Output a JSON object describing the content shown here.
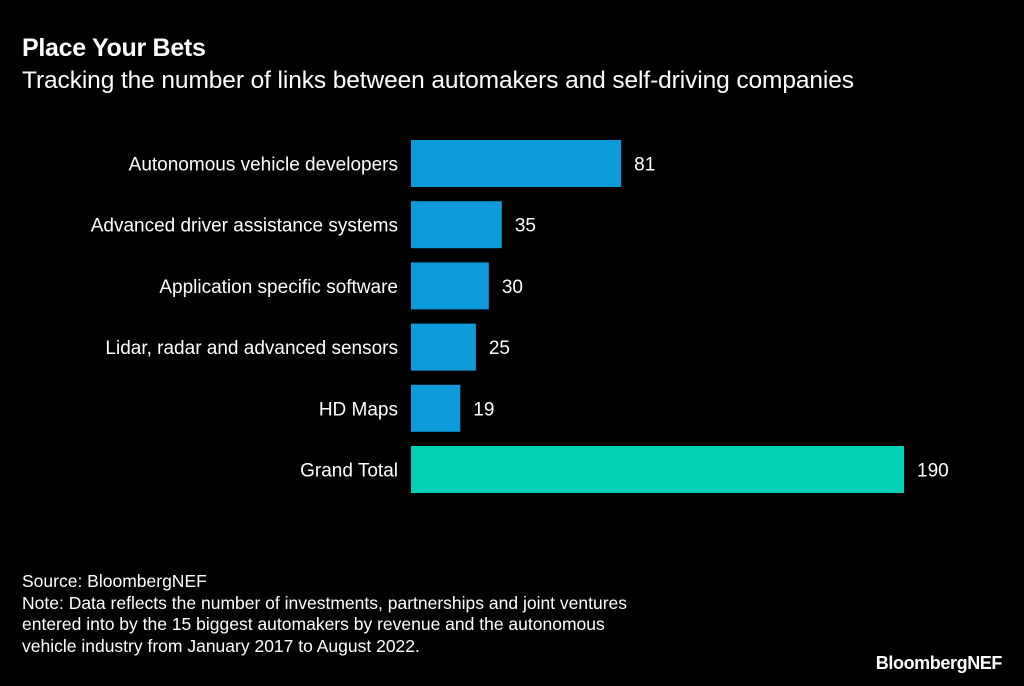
{
  "header": {
    "title": "Place Your Bets",
    "subtitle": "Tracking the number of links between automakers and self-driving companies"
  },
  "chart_data": {
    "type": "bar",
    "orientation": "horizontal",
    "title": "Place Your Bets",
    "subtitle": "Tracking the number of links between automakers and self-driving companies",
    "xlabel": "",
    "ylabel": "",
    "categories": [
      "Autonomous vehicle developers",
      "Advanced driver assistance systems",
      "Application specific software",
      "Lidar, radar and advanced sensors",
      "HD Maps",
      "Grand Total"
    ],
    "values": [
      81,
      35,
      30,
      25,
      19,
      190
    ],
    "data_labels": [
      "81",
      "35",
      "30",
      "25",
      "19",
      "190"
    ],
    "colors": [
      "#0E9BDB",
      "#0E9BDB",
      "#0E9BDB",
      "#0E9BDB",
      "#0E9BDB",
      "#00D1B6"
    ],
    "xlim": [
      0,
      190
    ],
    "grid": false,
    "legend": "none"
  },
  "footer": {
    "source": "Source: BloombergNEF",
    "note_lines": [
      "Note: Data reflects the number of investments, partnerships and joint ventures",
      "entered into by the 15 biggest automakers by revenue and the autonomous",
      "vehicle industry from January 2017 to August 2022."
    ]
  },
  "logo": "BloombergNEF"
}
